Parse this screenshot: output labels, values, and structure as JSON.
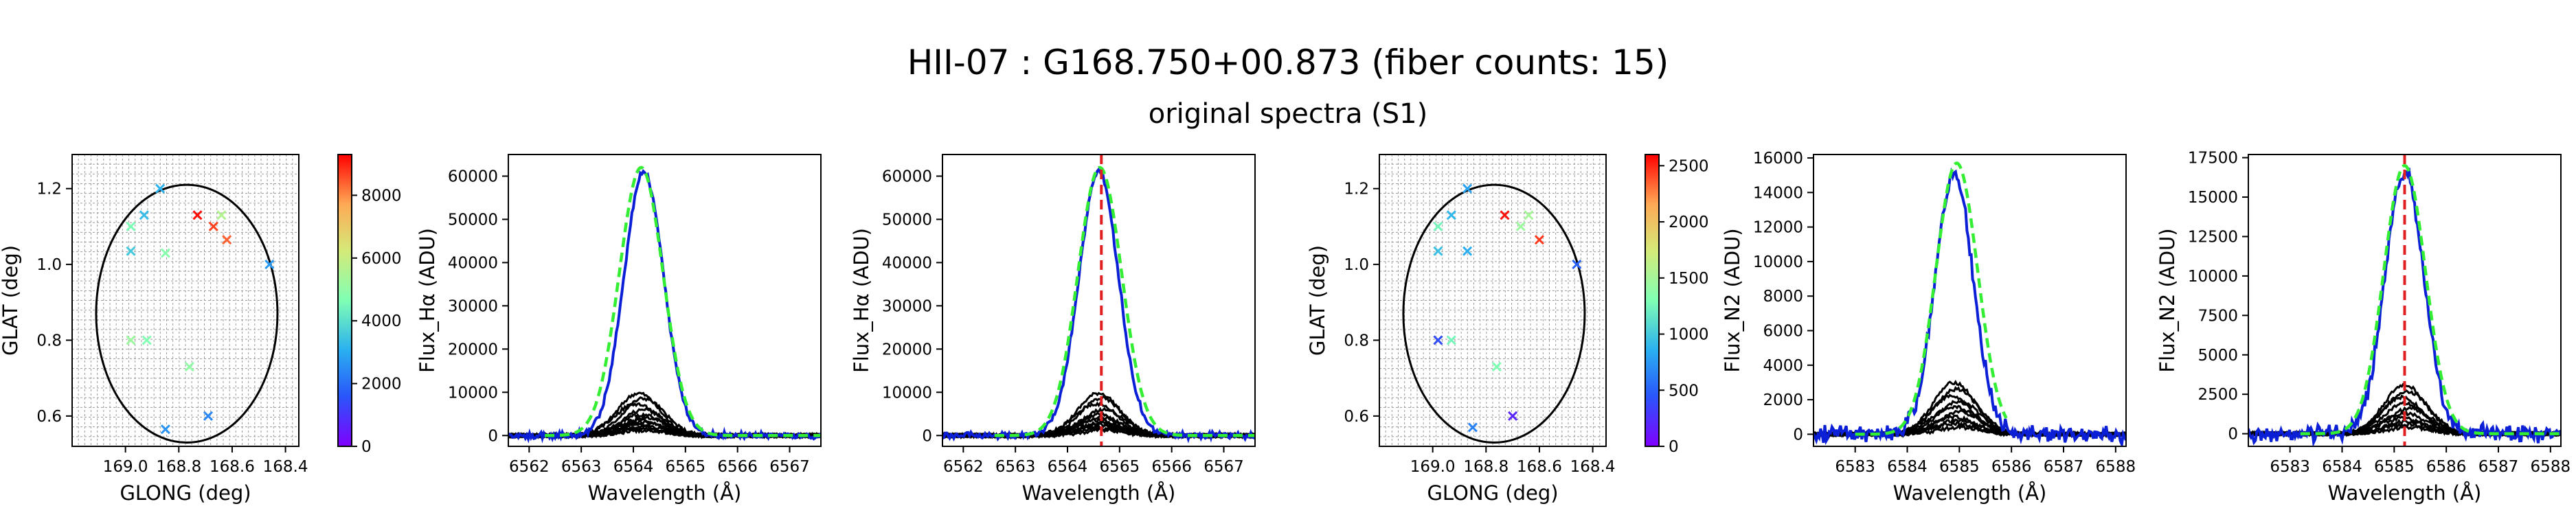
{
  "figure": {
    "title": "HII-07 : G168.750+00.873 (fiber counts: 15)",
    "subtitle": "original spectra (S1)"
  },
  "colors": {
    "fiber_line": "#000000",
    "fit_line": "#33ee33",
    "main_spectrum": "#0b1fd6",
    "center_line": "#e02020",
    "circle": "#000000"
  },
  "chart_data": [
    {
      "id": "map1",
      "type": "scatter",
      "xlabel": "GLONG (deg)",
      "ylabel": "GLAT (deg)",
      "xlim": [
        169.2,
        168.35
      ],
      "ylim": [
        0.52,
        1.29
      ],
      "xticks": [
        169.0,
        168.8,
        168.6,
        168.4
      ],
      "xtick_labels": [
        "169.0",
        "168.8",
        "168.6",
        "168.4"
      ],
      "yticks": [
        0.6,
        0.8,
        1.0,
        1.2
      ],
      "ytick_labels": [
        "0.6",
        "0.8",
        "1.0",
        "1.2"
      ],
      "grid": true,
      "marker": "x",
      "circle": {
        "center": [
          168.77,
          0.87
        ],
        "radius": 0.34
      },
      "colorbar": {
        "min": 0,
        "max": 9300,
        "ticks": [
          0,
          2000,
          4000,
          6000,
          8000
        ],
        "tick_labels": [
          "0",
          "2000",
          "4000",
          "6000",
          "8000"
        ]
      },
      "points": [
        {
          "x": 168.73,
          "y": 1.13,
          "value": 9200
        },
        {
          "x": 168.67,
          "y": 1.1,
          "value": 8700
        },
        {
          "x": 168.62,
          "y": 1.065,
          "value": 8400
        },
        {
          "x": 168.64,
          "y": 1.13,
          "value": 5600
        },
        {
          "x": 168.85,
          "y": 1.03,
          "value": 4800
        },
        {
          "x": 168.98,
          "y": 1.1,
          "value": 4600
        },
        {
          "x": 168.98,
          "y": 1.035,
          "value": 3600
        },
        {
          "x": 168.93,
          "y": 1.13,
          "value": 3300
        },
        {
          "x": 168.98,
          "y": 0.8,
          "value": 5200
        },
        {
          "x": 168.92,
          "y": 0.8,
          "value": 4700
        },
        {
          "x": 168.76,
          "y": 0.73,
          "value": 5000
        },
        {
          "x": 168.46,
          "y": 1.0,
          "value": 2700
        },
        {
          "x": 168.69,
          "y": 0.6,
          "value": 2400
        },
        {
          "x": 168.85,
          "y": 0.565,
          "value": 2600
        },
        {
          "x": 168.87,
          "y": 1.2,
          "value": 3100
        }
      ]
    },
    {
      "id": "spec1",
      "type": "line",
      "xlabel": "Wavelength (Å)",
      "ylabel": "Flux_Hα (ADU)",
      "xlim": [
        6561.6,
        6567.6
      ],
      "ylim": [
        -2500,
        65000
      ],
      "xticks": [
        6562,
        6563,
        6564,
        6565,
        6566,
        6567
      ],
      "xtick_labels": [
        "6562",
        "6563",
        "6564",
        "6565",
        "6566",
        "6567"
      ],
      "yticks": [
        0,
        10000,
        20000,
        30000,
        40000,
        50000,
        60000
      ],
      "ytick_labels": [
        "0",
        "10000",
        "20000",
        "30000",
        "40000",
        "50000",
        "60000"
      ],
      "center_line": null,
      "main_spectrum": {
        "center": 6564.2,
        "amplitude": 61000,
        "sigma": 0.38,
        "noise": 700,
        "x_start": 6561.6,
        "x_end": 6567.6
      },
      "fit": {
        "center": 6564.15,
        "amplitude": 62000,
        "sigma": 0.42,
        "x_start": 6562.3,
        "x_end": 6567.6
      },
      "fibers": [
        {
          "center": 6564.1,
          "amplitude": 9800,
          "sigma": 0.4
        },
        {
          "center": 6564.2,
          "amplitude": 8600,
          "sigma": 0.4
        },
        {
          "center": 6564.05,
          "amplitude": 7300,
          "sigma": 0.42
        },
        {
          "center": 6564.2,
          "amplitude": 6000,
          "sigma": 0.4
        },
        {
          "center": 6564.15,
          "amplitude": 4800,
          "sigma": 0.4
        },
        {
          "center": 6564.25,
          "amplitude": 4200,
          "sigma": 0.38
        },
        {
          "center": 6564.1,
          "amplitude": 3600,
          "sigma": 0.4
        },
        {
          "center": 6564.2,
          "amplitude": 3100,
          "sigma": 0.4
        },
        {
          "center": 6564.0,
          "amplitude": 2600,
          "sigma": 0.42
        },
        {
          "center": 6564.25,
          "amplitude": 2100,
          "sigma": 0.4
        },
        {
          "center": 6564.1,
          "amplitude": 1600,
          "sigma": 0.4
        },
        {
          "center": 6564.2,
          "amplitude": 1200,
          "sigma": 0.4
        }
      ]
    },
    {
      "id": "spec2",
      "type": "line",
      "xlabel": "Wavelength (Å)",
      "ylabel": "Flux_Hα (ADU)",
      "xlim": [
        6561.6,
        6567.6
      ],
      "ylim": [
        -2500,
        65000
      ],
      "xticks": [
        6562,
        6563,
        6564,
        6565,
        6566,
        6567
      ],
      "xtick_labels": [
        "6562",
        "6563",
        "6564",
        "6565",
        "6566",
        "6567"
      ],
      "yticks": [
        0,
        10000,
        20000,
        30000,
        40000,
        50000,
        60000
      ],
      "ytick_labels": [
        "0",
        "10000",
        "20000",
        "30000",
        "40000",
        "50000",
        "60000"
      ],
      "center_line": 6564.65,
      "main_spectrum": {
        "center": 6564.6,
        "amplitude": 61000,
        "sigma": 0.38,
        "noise": 700,
        "x_start": 6561.6,
        "x_end": 6567.6
      },
      "fit": {
        "center": 6564.62,
        "amplitude": 62000,
        "sigma": 0.42,
        "x_start": 6562.6,
        "x_end": 6567.6
      },
      "fibers": [
        {
          "center": 6564.6,
          "amplitude": 9800,
          "sigma": 0.4
        },
        {
          "center": 6564.65,
          "amplitude": 8600,
          "sigma": 0.4
        },
        {
          "center": 6564.55,
          "amplitude": 7300,
          "sigma": 0.42
        },
        {
          "center": 6564.7,
          "amplitude": 6000,
          "sigma": 0.4
        },
        {
          "center": 6564.6,
          "amplitude": 4800,
          "sigma": 0.4
        },
        {
          "center": 6564.65,
          "amplitude": 4200,
          "sigma": 0.38
        },
        {
          "center": 6564.55,
          "amplitude": 3600,
          "sigma": 0.4
        },
        {
          "center": 6564.7,
          "amplitude": 3100,
          "sigma": 0.4
        },
        {
          "center": 6564.6,
          "amplitude": 2600,
          "sigma": 0.42
        },
        {
          "center": 6564.65,
          "amplitude": 2100,
          "sigma": 0.4
        },
        {
          "center": 6564.6,
          "amplitude": 1600,
          "sigma": 0.4
        },
        {
          "center": 6564.7,
          "amplitude": 1200,
          "sigma": 0.4
        }
      ]
    },
    {
      "id": "map2",
      "type": "scatter",
      "xlabel": "GLONG (deg)",
      "ylabel": "GLAT (deg)",
      "xlim": [
        169.2,
        168.35
      ],
      "ylim": [
        0.52,
        1.29
      ],
      "xticks": [
        169.0,
        168.8,
        168.6,
        168.4
      ],
      "xtick_labels": [
        "169.0",
        "168.8",
        "168.6",
        "168.4"
      ],
      "yticks": [
        0.6,
        0.8,
        1.0,
        1.2
      ],
      "ytick_labels": [
        "0.6",
        "0.8",
        "1.0",
        "1.2"
      ],
      "grid": true,
      "marker": "x",
      "circle": {
        "center": [
          168.77,
          0.87
        ],
        "radius": 0.34
      },
      "colorbar": {
        "min": 0,
        "max": 2600,
        "ticks": [
          0,
          500,
          1000,
          1500,
          2000,
          2500
        ],
        "tick_labels": [
          "0",
          "500",
          "1000",
          "1500",
          "2000",
          "2500"
        ]
      },
      "points": [
        {
          "x": 168.73,
          "y": 1.13,
          "value": 2550
        },
        {
          "x": 168.6,
          "y": 1.065,
          "value": 2450
        },
        {
          "x": 168.64,
          "y": 1.13,
          "value": 1500
        },
        {
          "x": 168.67,
          "y": 1.1,
          "value": 1450
        },
        {
          "x": 168.98,
          "y": 1.1,
          "value": 1250
        },
        {
          "x": 168.93,
          "y": 1.13,
          "value": 900
        },
        {
          "x": 168.98,
          "y": 1.035,
          "value": 950
        },
        {
          "x": 168.87,
          "y": 1.035,
          "value": 850
        },
        {
          "x": 168.87,
          "y": 1.2,
          "value": 800
        },
        {
          "x": 168.98,
          "y": 0.8,
          "value": 400
        },
        {
          "x": 168.93,
          "y": 0.8,
          "value": 1250
        },
        {
          "x": 168.76,
          "y": 0.73,
          "value": 1300
        },
        {
          "x": 168.46,
          "y": 1.0,
          "value": 500
        },
        {
          "x": 168.7,
          "y": 0.6,
          "value": 200
        },
        {
          "x": 168.85,
          "y": 0.57,
          "value": 650
        }
      ]
    },
    {
      "id": "spec3",
      "type": "line",
      "xlabel": "Wavelength (Å)",
      "ylabel": "Flux_N2 (ADU)",
      "xlim": [
        6582.2,
        6588.2
      ],
      "ylim": [
        -700,
        16200
      ],
      "xticks": [
        6583,
        6584,
        6585,
        6586,
        6587,
        6588
      ],
      "xtick_labels": [
        "6583",
        "6584",
        "6585",
        "6586",
        "6587",
        "6588"
      ],
      "yticks": [
        0,
        2000,
        4000,
        6000,
        8000,
        10000,
        12000,
        14000,
        16000
      ],
      "ytick_labels": [
        "0",
        "2000",
        "4000",
        "6000",
        "8000",
        "10000",
        "12000",
        "14000",
        "16000"
      ],
      "center_line": null,
      "main_spectrum": {
        "center": 6584.9,
        "amplitude": 15000,
        "sigma": 0.36,
        "noise": 450,
        "x_start": 6582.2,
        "x_end": 6588.2
      },
      "fit": {
        "center": 6584.95,
        "amplitude": 15700,
        "sigma": 0.4,
        "x_start": 6583.0,
        "x_end": 6585.9
      },
      "fibers": [
        {
          "center": 6584.9,
          "amplitude": 3000,
          "sigma": 0.4
        },
        {
          "center": 6584.95,
          "amplitude": 2600,
          "sigma": 0.42
        },
        {
          "center": 6584.85,
          "amplitude": 2200,
          "sigma": 0.4
        },
        {
          "center": 6585.0,
          "amplitude": 1900,
          "sigma": 0.4
        },
        {
          "center": 6584.9,
          "amplitude": 1600,
          "sigma": 0.42
        },
        {
          "center": 6585.0,
          "amplitude": 1300,
          "sigma": 0.4
        },
        {
          "center": 6584.9,
          "amplitude": 1000,
          "sigma": 0.4
        },
        {
          "center": 6584.95,
          "amplitude": 800,
          "sigma": 0.4
        },
        {
          "center": 6584.9,
          "amplitude": 600,
          "sigma": 0.4
        },
        {
          "center": 6585.0,
          "amplitude": 400,
          "sigma": 0.4
        }
      ]
    },
    {
      "id": "spec4",
      "type": "line",
      "xlabel": "Wavelength (Å)",
      "ylabel": "Flux_N2 (ADU)",
      "xlim": [
        6582.2,
        6588.2
      ],
      "ylim": [
        -800,
        17700
      ],
      "xticks": [
        6583,
        6584,
        6585,
        6586,
        6587,
        6588
      ],
      "xtick_labels": [
        "6583",
        "6584",
        "6585",
        "6586",
        "6587",
        "6588"
      ],
      "yticks": [
        0,
        2500,
        5000,
        7500,
        10000,
        12500,
        15000,
        17500
      ],
      "ytick_labels": [
        "0",
        "2500",
        "5000",
        "7500",
        "10000",
        "12500",
        "15000",
        "17500"
      ],
      "center_line": 6585.2,
      "main_spectrum": {
        "center": 6585.2,
        "amplitude": 16700,
        "sigma": 0.37,
        "noise": 500,
        "x_start": 6582.2,
        "x_end": 6588.2
      },
      "fit": {
        "center": 6585.2,
        "amplitude": 17000,
        "sigma": 0.4,
        "x_start": 6583.2,
        "x_end": 6588.2
      },
      "fibers": [
        {
          "center": 6585.2,
          "amplitude": 3100,
          "sigma": 0.4
        },
        {
          "center": 6585.25,
          "amplitude": 2700,
          "sigma": 0.42
        },
        {
          "center": 6585.15,
          "amplitude": 2300,
          "sigma": 0.4
        },
        {
          "center": 6585.2,
          "amplitude": 1900,
          "sigma": 0.4
        },
        {
          "center": 6585.3,
          "amplitude": 1600,
          "sigma": 0.42
        },
        {
          "center": 6585.2,
          "amplitude": 1300,
          "sigma": 0.4
        },
        {
          "center": 6585.15,
          "amplitude": 1000,
          "sigma": 0.4
        },
        {
          "center": 6585.25,
          "amplitude": 800,
          "sigma": 0.4
        },
        {
          "center": 6585.2,
          "amplitude": 600,
          "sigma": 0.4
        },
        {
          "center": 6585.3,
          "amplitude": 400,
          "sigma": 0.4
        }
      ]
    }
  ]
}
